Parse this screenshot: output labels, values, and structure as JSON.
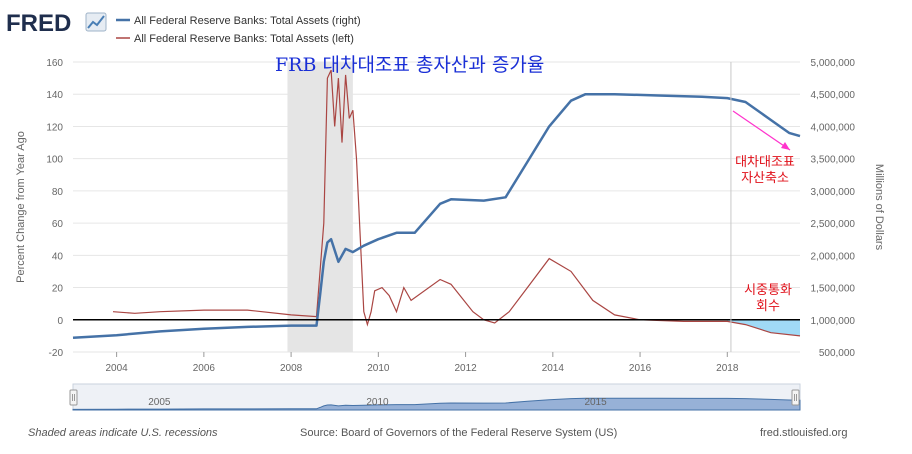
{
  "logo": {
    "text": "FRED",
    "icon": "line-chart-icon"
  },
  "legend": [
    {
      "label": "All Federal Reserve Banks: Total Assets (right)",
      "color": "#4572a7"
    },
    {
      "label": "All Federal Reserve Banks: Total Assets (left)",
      "color": "#aa4643"
    }
  ],
  "annotations": {
    "title": "FRB 대차대조표 총자산과 증가율",
    "balance_sheet_shrink": [
      "대차대조표",
      "자산축소"
    ],
    "money_withdrawal": [
      "시중통화",
      "회수"
    ]
  },
  "footer": {
    "recession_note": "Shaded areas indicate U.S. recessions",
    "source": "Source: Board of Governors of the Federal Reserve System (US)",
    "site": "fred.stlouisfed.org"
  },
  "navigator": {
    "labels": [
      "2005",
      "2010",
      "2015"
    ]
  },
  "chart_data": {
    "type": "line",
    "x_range": [
      "2003-01",
      "2019-09"
    ],
    "x_ticks": [
      "2004",
      "2006",
      "2008",
      "2010",
      "2012",
      "2014",
      "2016",
      "2018"
    ],
    "y_left": {
      "title": "Percent Change from Year Ago",
      "range": [
        -20,
        160
      ],
      "ticks": [
        "160",
        "140",
        "120",
        "100",
        "80",
        "60",
        "40",
        "20",
        "0",
        "-20"
      ]
    },
    "y_right": {
      "title": "Millions of Dollars",
      "range": [
        500000,
        5000000
      ],
      "ticks": [
        "5,000,000",
        "4,500,000",
        "4,000,000",
        "3,500,000",
        "3,000,000",
        "2,500,000",
        "2,000,000",
        "1,500,000",
        "1,000,000",
        "500,000"
      ]
    },
    "recessions": [
      [
        "2007-12",
        "2009-06"
      ]
    ],
    "grid": true,
    "legend_position": "top-left",
    "series": [
      {
        "name": "All Federal Reserve Banks: Total Assets (right)",
        "axis": "right",
        "color": "#4572a7",
        "x": [
          "2003-01",
          "2004-01",
          "2005-01",
          "2006-01",
          "2007-01",
          "2008-01",
          "2008-08",
          "2008-09",
          "2008-10",
          "2008-11",
          "2008-12",
          "2009-02",
          "2009-04",
          "2009-06",
          "2009-09",
          "2010-01",
          "2010-06",
          "2010-11",
          "2011-06",
          "2011-09",
          "2012-06",
          "2012-12",
          "2013-06",
          "2013-12",
          "2014-06",
          "2014-10",
          "2015-06",
          "2016-06",
          "2017-06",
          "2018-01",
          "2018-06",
          "2019-01",
          "2019-06",
          "2019-09"
        ],
        "y": [
          720000,
          760000,
          820000,
          860000,
          890000,
          910000,
          910000,
          1400000,
          1900000,
          2200000,
          2250000,
          1900000,
          2100000,
          2050000,
          2150000,
          2250000,
          2350000,
          2350000,
          2800000,
          2870000,
          2850000,
          2900000,
          3450000,
          4000000,
          4400000,
          4500000,
          4500000,
          4480000,
          4460000,
          4440000,
          4380000,
          4100000,
          3900000,
          3850000
        ]
      },
      {
        "name": "All Federal Reserve Banks: Total Assets (left)",
        "axis": "left",
        "color": "#aa4643",
        "x": [
          "2003-12",
          "2004-06",
          "2005-01",
          "2006-01",
          "2007-01",
          "2008-01",
          "2008-08",
          "2008-10",
          "2008-11",
          "2008-12",
          "2009-01",
          "2009-02",
          "2009-03",
          "2009-04",
          "2009-05",
          "2009-06",
          "2009-07",
          "2009-09",
          "2009-10",
          "2009-11",
          "2009-12",
          "2010-02",
          "2010-04",
          "2010-06",
          "2010-08",
          "2010-10",
          "2011-06",
          "2011-09",
          "2012-03",
          "2012-06",
          "2012-09",
          "2013-01",
          "2013-06",
          "2013-12",
          "2014-06",
          "2014-12",
          "2015-06",
          "2016-01",
          "2017-01",
          "2018-01",
          "2018-06",
          "2019-01",
          "2019-09"
        ],
        "y": [
          5,
          4,
          5,
          6,
          6,
          3,
          2,
          60,
          150,
          155,
          120,
          150,
          110,
          152,
          125,
          130,
          100,
          5,
          -3,
          5,
          18,
          20,
          15,
          5,
          20,
          12,
          25,
          22,
          5,
          0,
          -2,
          5,
          20,
          38,
          30,
          12,
          3,
          0,
          -1,
          -1,
          -3,
          -8,
          -10
        ]
      }
    ]
  }
}
